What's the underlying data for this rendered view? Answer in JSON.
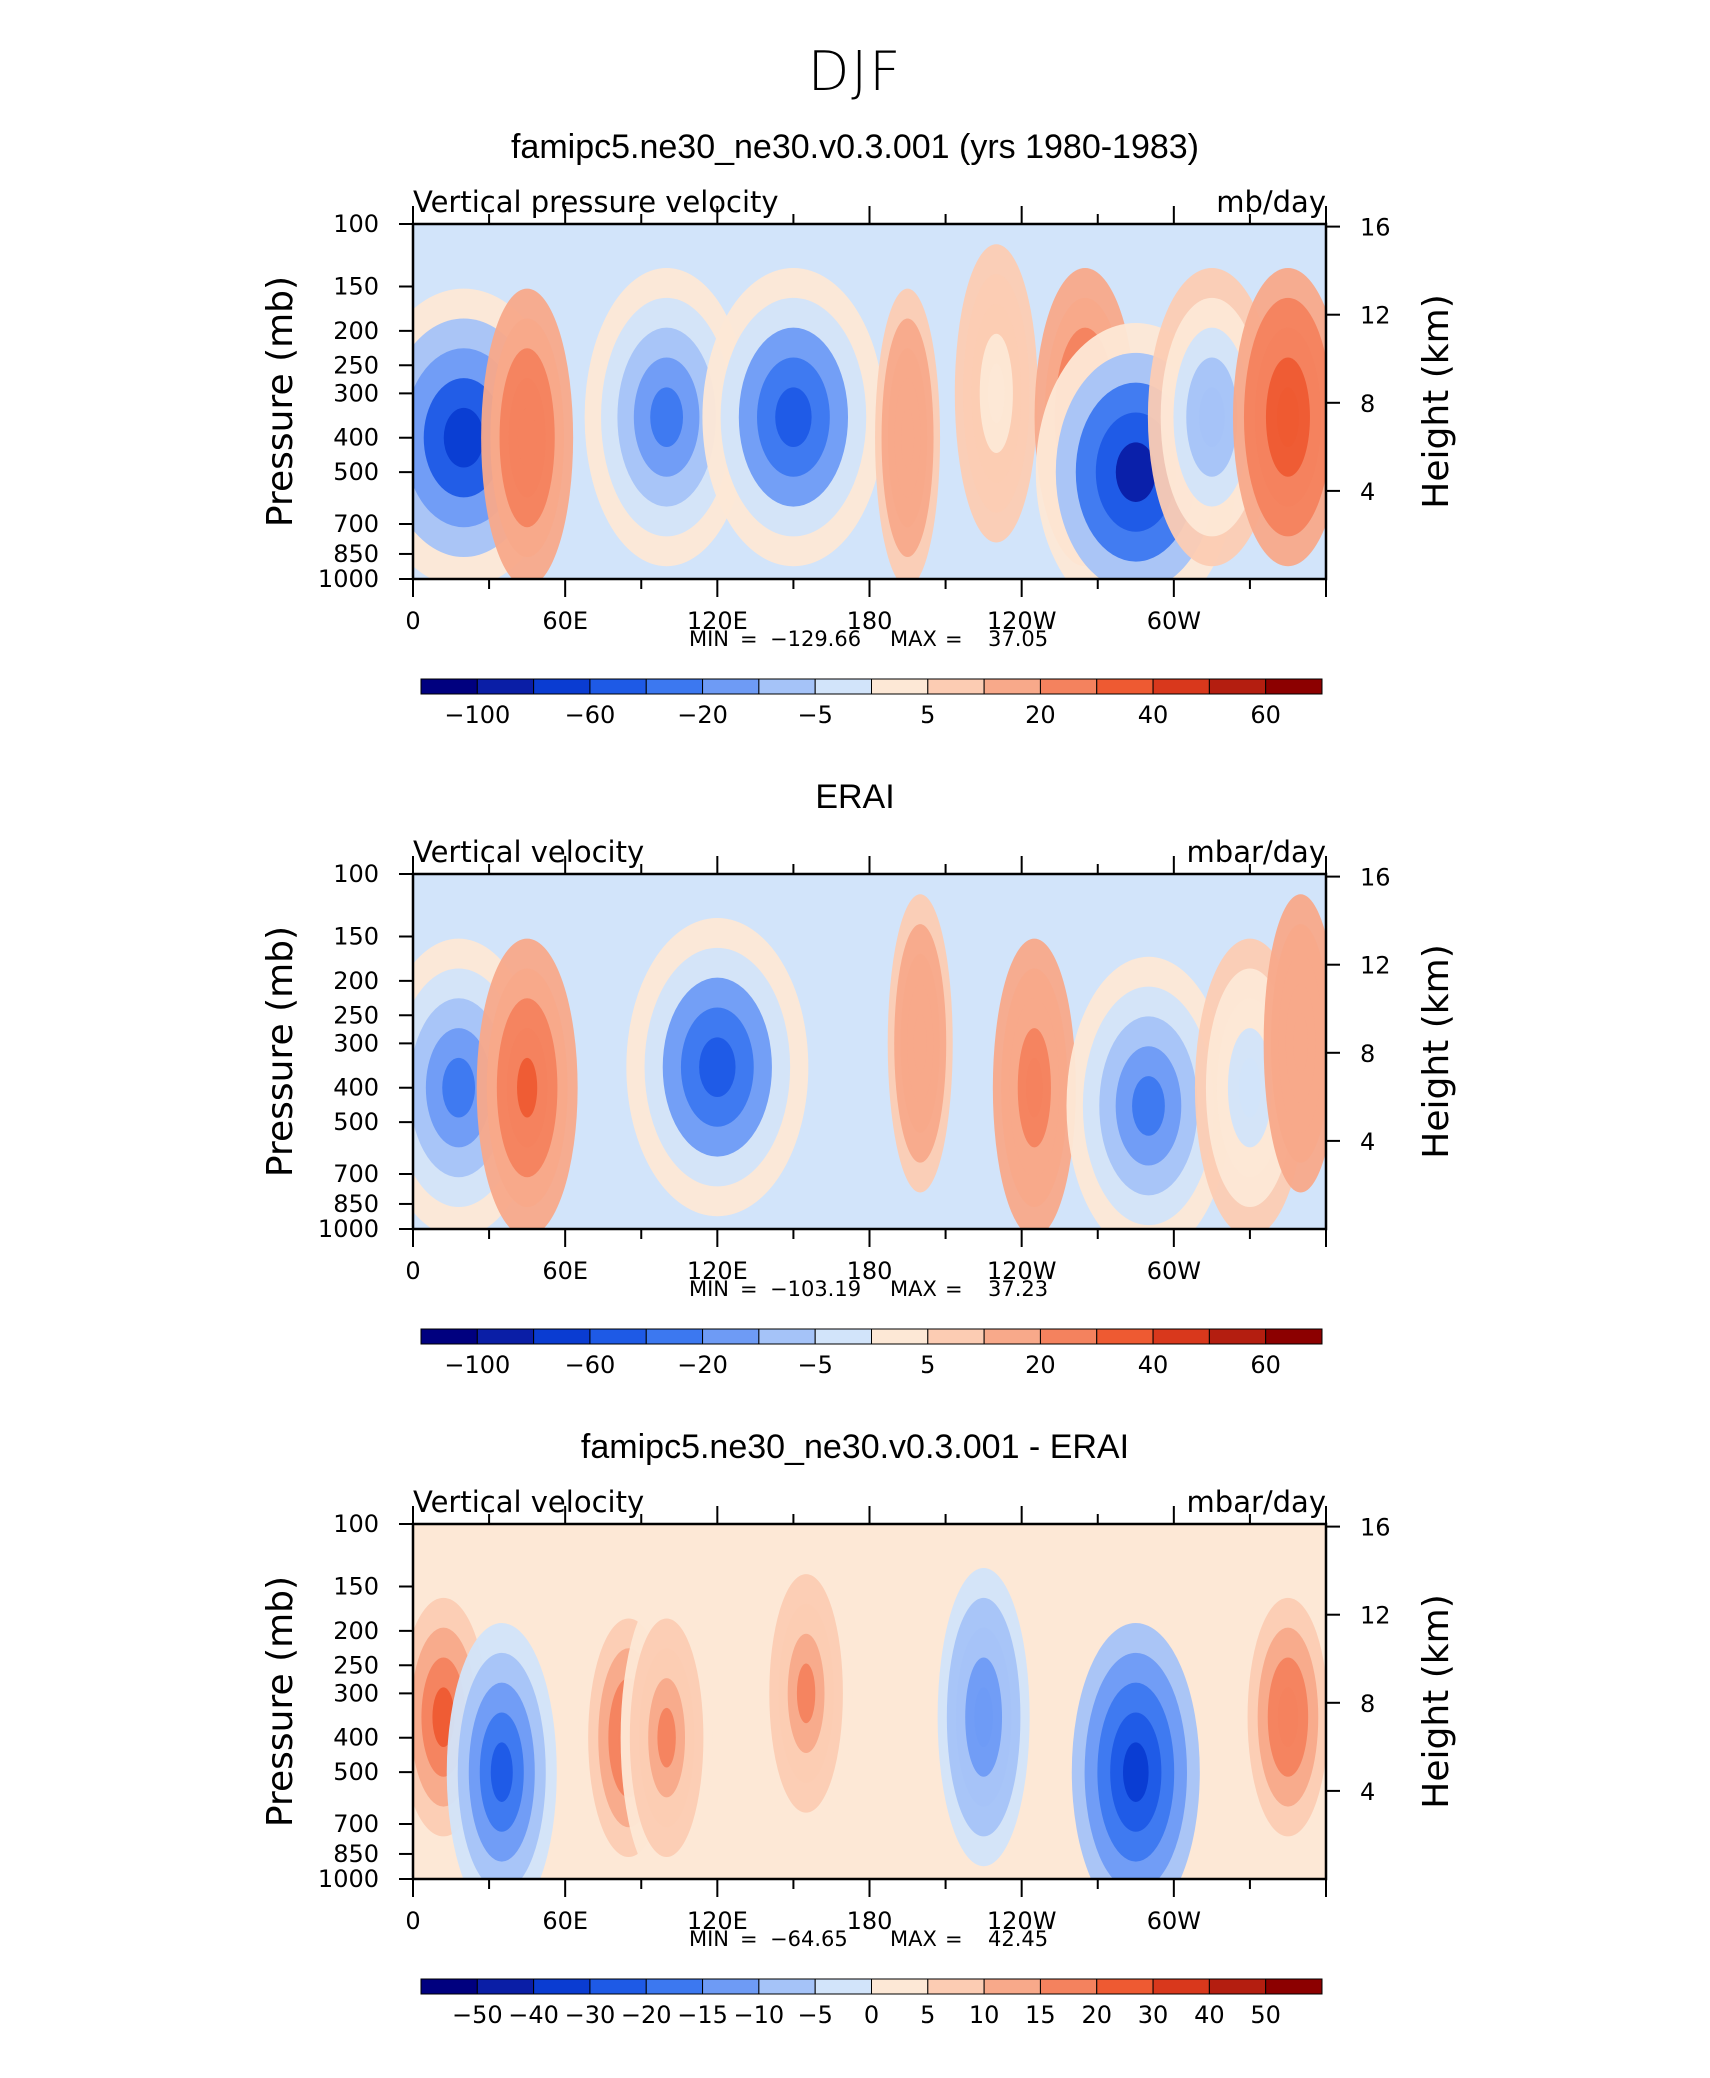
{
  "figure": {
    "title": "DJF"
  },
  "chart_data": [
    {
      "type": "heatmap",
      "title": "famipc5.ne30_ne30.v0.3.001 (yrs 1980-1983)",
      "variable": "Vertical pressure velocity",
      "units": "mb/day",
      "xticks": [
        "0",
        "60E",
        "120E",
        "180",
        "120W",
        "60W"
      ],
      "ylabel": "Pressure (mb)",
      "yticks": [
        "100",
        "150",
        "200",
        "250",
        "300",
        "400",
        "500",
        "700",
        "850",
        "1000"
      ],
      "ylabel_right": "Height (km)",
      "yticks_right": [
        "16",
        "12",
        "8",
        "4"
      ],
      "stats": {
        "min_label": "MIN",
        "min": "−129.66",
        "max_label": "MAX",
        "max": "37.05"
      },
      "colorbar": {
        "labels": [
          "−100",
          "−60",
          "−20",
          "−5",
          "5",
          "20",
          "40",
          "60"
        ],
        "colors": [
          "#00007f",
          "#0a1ea6",
          "#0a3cd2",
          "#1e5ae6",
          "#3c78f0",
          "#6e9bf5",
          "#a5c3f8",
          "#d2e4fa",
          "#fde8d6",
          "#fcccb3",
          "#f8a98a",
          "#f4825e",
          "#ee5a32",
          "#d9381c",
          "#b41e10",
          "#8c0000"
        ]
      },
      "features": [
        {
          "lon": 20,
          "level": 400,
          "value": -80
        },
        {
          "lon": 45,
          "level": 400,
          "value": 20
        },
        {
          "lon": 100,
          "level": 350,
          "value": -60
        },
        {
          "lon": 150,
          "level": 350,
          "value": -70
        },
        {
          "lon": 195,
          "level": 400,
          "value": 5
        },
        {
          "lon": 230,
          "level": 300,
          "value": -15
        },
        {
          "lon": 265,
          "level": 350,
          "value": 25
        },
        {
          "lon": 285,
          "level": 500,
          "value": -90
        },
        {
          "lon": 315,
          "level": 350,
          "value": -40
        },
        {
          "lon": 345,
          "level": 350,
          "value": 30
        }
      ]
    },
    {
      "type": "heatmap",
      "title": "ERAI",
      "variable": "Vertical velocity",
      "units": "mbar/day",
      "xticks": [
        "0",
        "60E",
        "120E",
        "180",
        "120W",
        "60W"
      ],
      "ylabel": "Pressure (mb)",
      "yticks": [
        "100",
        "150",
        "200",
        "250",
        "300",
        "400",
        "500",
        "700",
        "850",
        "1000"
      ],
      "ylabel_right": "Height (km)",
      "yticks_right": [
        "16",
        "12",
        "8",
        "4"
      ],
      "stats": {
        "min_label": "MIN",
        "min": "−103.19",
        "max_label": "MAX",
        "max": "37.23"
      },
      "colorbar": {
        "labels": [
          "−100",
          "−60",
          "−20",
          "−5",
          "5",
          "20",
          "40",
          "60"
        ],
        "colors": [
          "#00007f",
          "#0a1ea6",
          "#0a3cd2",
          "#1e5ae6",
          "#3c78f0",
          "#6e9bf5",
          "#a5c3f8",
          "#d2e4fa",
          "#fde8d6",
          "#fcccb3",
          "#f8a98a",
          "#f4825e",
          "#ee5a32",
          "#d9381c",
          "#b41e10",
          "#8c0000"
        ]
      },
      "features": [
        {
          "lon": 18,
          "level": 400,
          "value": -60
        },
        {
          "lon": 45,
          "level": 400,
          "value": 25
        },
        {
          "lon": 120,
          "level": 350,
          "value": -70
        },
        {
          "lon": 200,
          "level": 300,
          "value": 5
        },
        {
          "lon": 245,
          "level": 400,
          "value": 15
        },
        {
          "lon": 290,
          "level": 450,
          "value": -60
        },
        {
          "lon": 330,
          "level": 400,
          "value": -30
        },
        {
          "lon": 350,
          "level": 300,
          "value": 10
        }
      ]
    },
    {
      "type": "heatmap",
      "title": "famipc5.ne30_ne30.v0.3.001 - ERAI",
      "variable": "Vertical velocity",
      "units": "mbar/day",
      "xticks": [
        "0",
        "60E",
        "120E",
        "180",
        "120W",
        "60W"
      ],
      "ylabel": "Pressure (mb)",
      "yticks": [
        "100",
        "150",
        "200",
        "250",
        "300",
        "400",
        "500",
        "700",
        "850",
        "1000"
      ],
      "ylabel_right": "Height (km)",
      "yticks_right": [
        "16",
        "12",
        "8",
        "4"
      ],
      "stats": {
        "min_label": "MIN",
        "min": "−64.65",
        "max_label": "MAX",
        "max": "42.45"
      },
      "colorbar": {
        "labels": [
          "−50",
          "−40",
          "−30",
          "−20",
          "−15",
          "−10",
          "−5",
          "0",
          "5",
          "10",
          "15",
          "20",
          "30",
          "40",
          "50"
        ],
        "colors": [
          "#00007f",
          "#0a1ea6",
          "#0a3cd2",
          "#1e5ae6",
          "#3c78f0",
          "#6e9bf5",
          "#a5c3f8",
          "#d2e4fa",
          "#fde8d6",
          "#fcccb3",
          "#f8a98a",
          "#f4825e",
          "#ee5a32",
          "#d9381c",
          "#b41e10",
          "#8c0000"
        ]
      },
      "features": [
        {
          "lon": 12,
          "level": 350,
          "value": 30
        },
        {
          "lon": 35,
          "level": 500,
          "value": -30
        },
        {
          "lon": 85,
          "level": 400,
          "value": 25
        },
        {
          "lon": 100,
          "level": 400,
          "value": 20
        },
        {
          "lon": 155,
          "level": 300,
          "value": 20
        },
        {
          "lon": 225,
          "level": 350,
          "value": -20
        },
        {
          "lon": 285,
          "level": 500,
          "value": -40
        },
        {
          "lon": 345,
          "level": 350,
          "value": 25
        }
      ]
    }
  ]
}
